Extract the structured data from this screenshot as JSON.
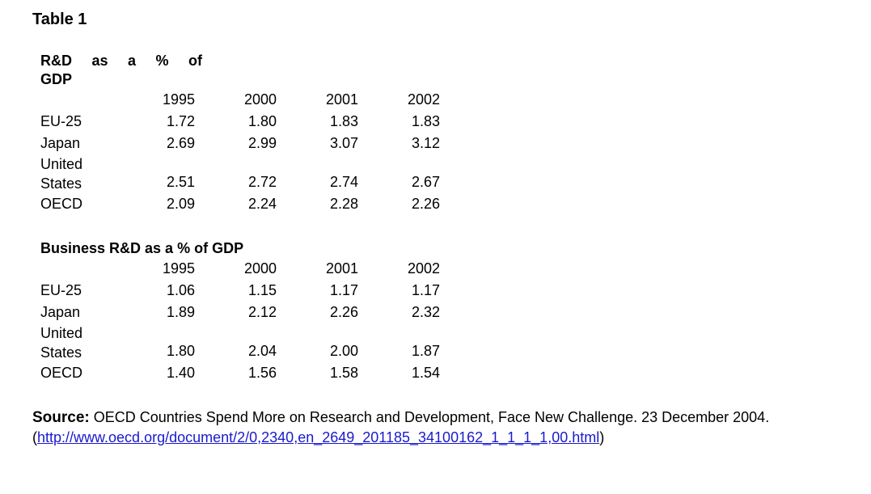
{
  "document": {
    "title": "Table 1"
  },
  "tables": [
    {
      "title_line1": "R&D as a % of",
      "title_line2": "GDP",
      "years": [
        "1995",
        "2000",
        "2001",
        "2002"
      ],
      "rows": [
        {
          "label_line1": "EU-25",
          "label_line2": "",
          "values": [
            "1.72",
            "1.80",
            "1.83",
            "1.83"
          ]
        },
        {
          "label_line1": "Japan",
          "label_line2": "",
          "values": [
            "2.69",
            "2.99",
            "3.07",
            "3.12"
          ]
        },
        {
          "label_line1": "United",
          "label_line2": "States",
          "values": [
            "2.51",
            "2.72",
            "2.74",
            "2.67"
          ]
        },
        {
          "label_line1": "OECD",
          "label_line2": "",
          "values": [
            "2.09",
            "2.24",
            "2.28",
            "2.26"
          ]
        }
      ]
    },
    {
      "title_line1": "Business R&D as a % of GDP",
      "title_line2": "",
      "years": [
        "1995",
        "2000",
        "2001",
        "2002"
      ],
      "rows": [
        {
          "label_line1": "EU-25",
          "label_line2": "",
          "values": [
            "1.06",
            "1.15",
            "1.17",
            "1.17"
          ]
        },
        {
          "label_line1": "Japan",
          "label_line2": "",
          "values": [
            "1.89",
            "2.12",
            "2.26",
            "2.32"
          ]
        },
        {
          "label_line1": "United",
          "label_line2": "States",
          "values": [
            "1.80",
            "2.04",
            "2.00",
            "1.87"
          ]
        },
        {
          "label_line1": "OECD",
          "label_line2": "",
          "values": [
            "1.40",
            "1.56",
            "1.58",
            "1.54"
          ]
        }
      ]
    }
  ],
  "source": {
    "label": "Source:",
    "text": " OECD Countries Spend More on Research and Development, Face New Challenge. 23 December 2004.",
    "open_paren": "(",
    "link_text": "http://www.oecd.org/document/2/0,2340,en_2649_201185_34100162_1_1_1_1,00.html",
    "close_paren": ")"
  }
}
